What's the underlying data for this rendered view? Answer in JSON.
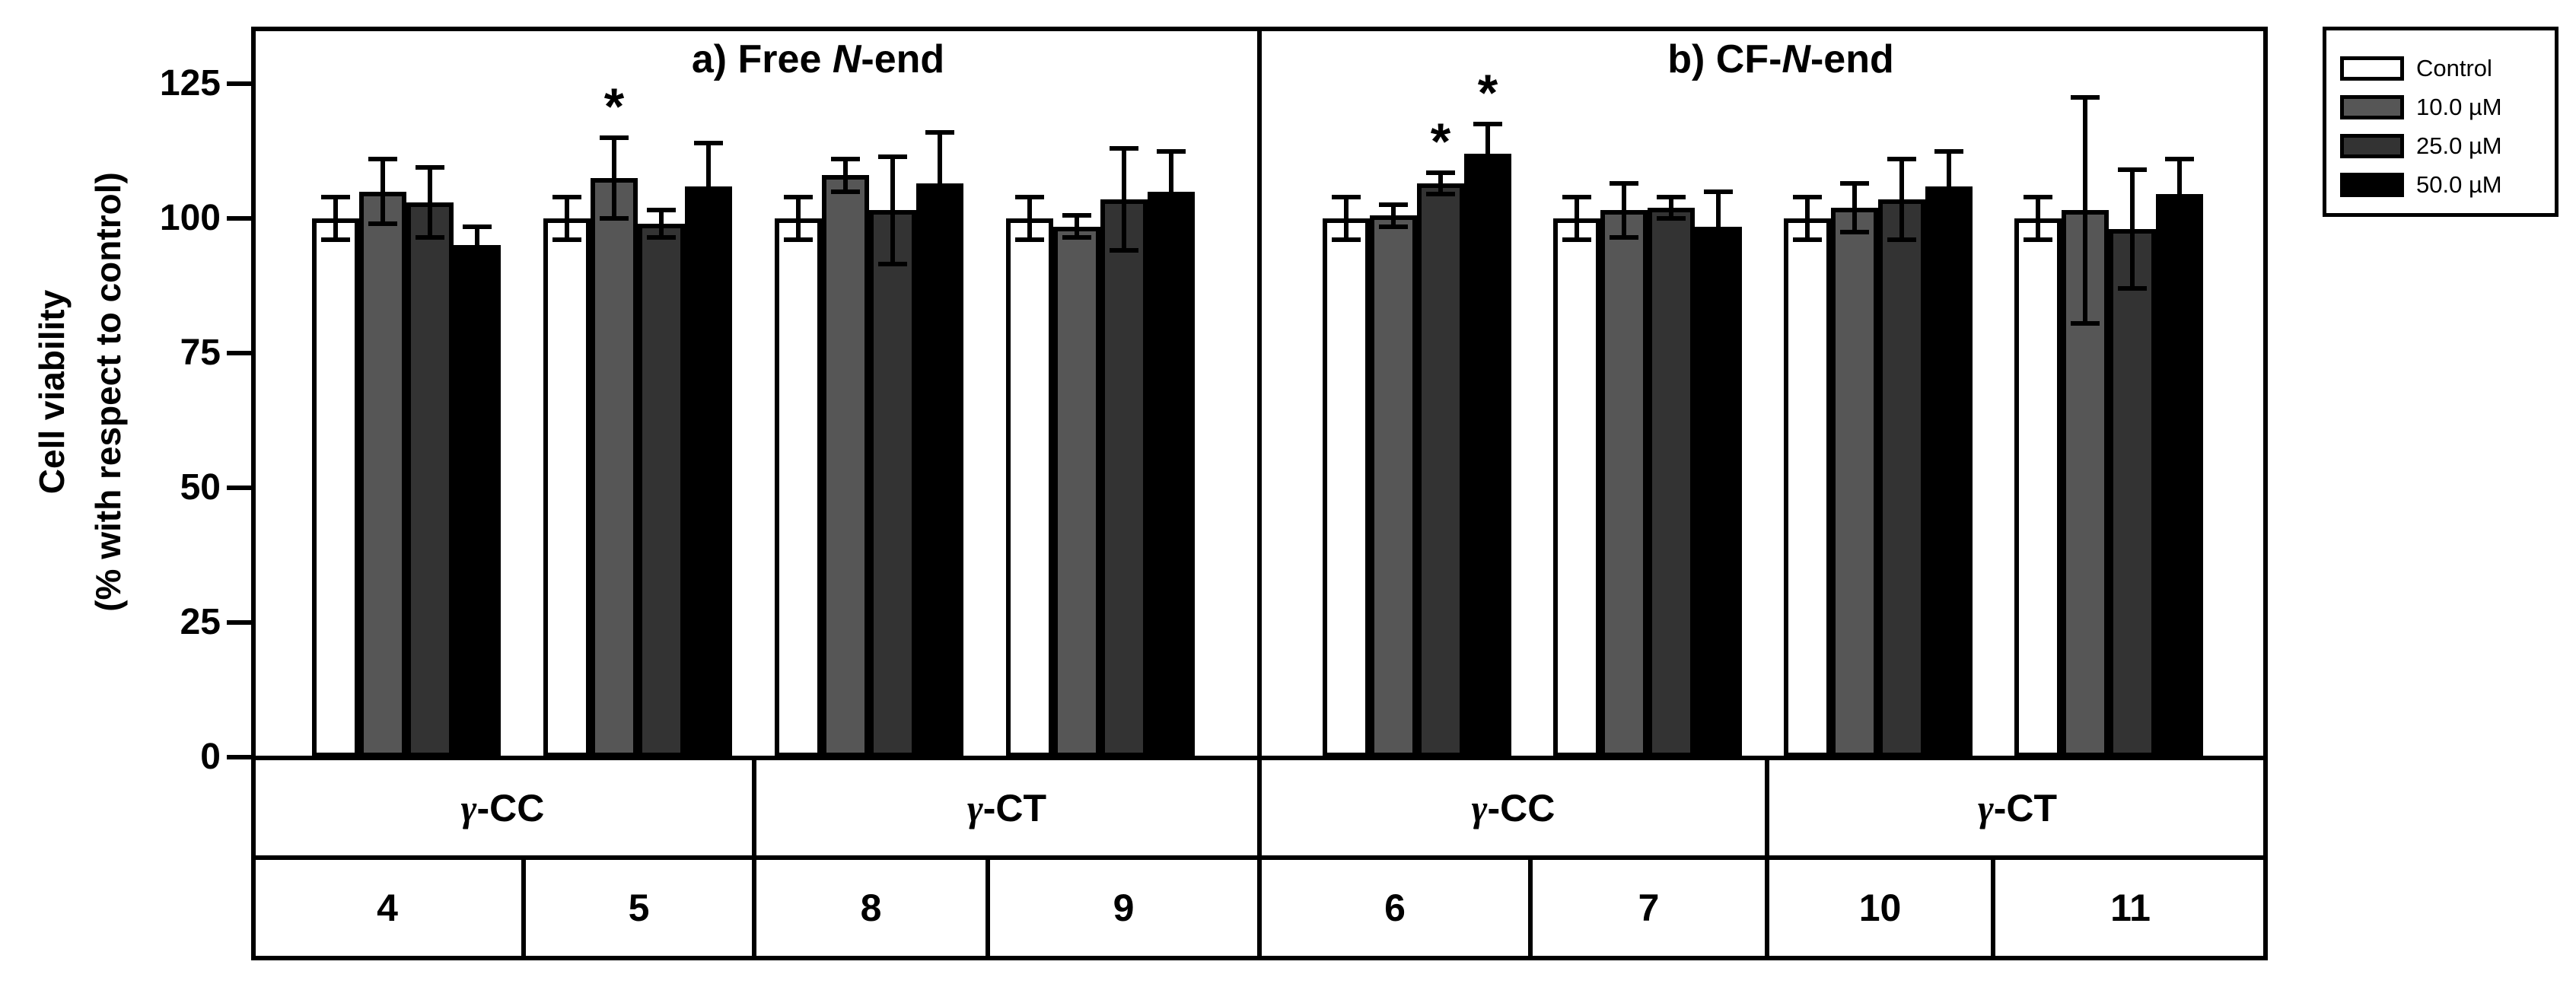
{
  "chart_data": {
    "type": "bar",
    "title": "",
    "ylabel_lines": [
      "Cell viability",
      "(% with respect to control)"
    ],
    "ylim": [
      0,
      135
    ],
    "yticks": [
      0,
      25,
      50,
      75,
      100,
      125
    ],
    "grid": false,
    "legend_position": "outside-top-right",
    "significance_marker": "*",
    "series": [
      {
        "name": "Control",
        "color": "#ffffff"
      },
      {
        "name": "10.0 µM",
        "color": "#565656"
      },
      {
        "name": "25.0 µM",
        "color": "#333333"
      },
      {
        "name": "50.0 µM",
        "color": "#000000"
      }
    ],
    "panels": [
      {
        "title": {
          "prefix": "a) Free ",
          "italic": "N",
          "suffix": "-end"
        },
        "species": [
          {
            "name": "γ-CC",
            "compounds": [
              "4",
              "5"
            ]
          },
          {
            "name": "γ-CT",
            "compounds": [
              "8",
              "9"
            ]
          }
        ],
        "groups": [
          {
            "compound": "4",
            "species": "γ-CC",
            "values": [
              100,
              105,
              103,
              95
            ],
            "errors": [
              4,
              6,
              6.5,
              3.5
            ],
            "sig": [
              false,
              false,
              false,
              false
            ]
          },
          {
            "compound": "5",
            "species": "γ-CC",
            "values": [
              100,
              107.5,
              99,
              106
            ],
            "errors": [
              4,
              7.5,
              2.5,
              8
            ],
            "sig": [
              false,
              true,
              false,
              false
            ]
          },
          {
            "compound": "8",
            "species": "γ-CT",
            "values": [
              100,
              108,
              101.5,
              106.5
            ],
            "errors": [
              4,
              3,
              10,
              9.5
            ],
            "sig": [
              false,
              false,
              false,
              false
            ]
          },
          {
            "compound": "9",
            "species": "γ-CT",
            "values": [
              100,
              98.5,
              103.5,
              105
            ],
            "errors": [
              4,
              2,
              9.5,
              7.5
            ],
            "sig": [
              false,
              false,
              false,
              false
            ]
          }
        ]
      },
      {
        "title": {
          "prefix": "b) CF-",
          "italic": "N",
          "suffix": "-end"
        },
        "species": [
          {
            "name": "γ-CC",
            "compounds": [
              "6",
              "7"
            ]
          },
          {
            "name": "γ-CT",
            "compounds": [
              "10",
              "11"
            ]
          }
        ],
        "groups": [
          {
            "compound": "6",
            "species": "γ-CC",
            "values": [
              100,
              100.5,
              106.5,
              112
            ],
            "errors": [
              4,
              2,
              2,
              5.5
            ],
            "sig": [
              false,
              false,
              true,
              true
            ]
          },
          {
            "compound": "7",
            "species": "γ-CC",
            "values": [
              100,
              101.5,
              102,
              98.5
            ],
            "errors": [
              4,
              5,
              2,
              6.5
            ],
            "sig": [
              false,
              false,
              false,
              false
            ]
          },
          {
            "compound": "10",
            "species": "γ-CT",
            "values": [
              100,
              102,
              103.5,
              106
            ],
            "errors": [
              4,
              4.5,
              7.5,
              6.5
            ],
            "sig": [
              false,
              false,
              false,
              false
            ]
          },
          {
            "compound": "11",
            "species": "γ-CT",
            "values": [
              100,
              101.5,
              98,
              104.5
            ],
            "errors": [
              4,
              21,
              11,
              6.5
            ],
            "sig": [
              false,
              false,
              false,
              false
            ]
          }
        ]
      }
    ]
  }
}
